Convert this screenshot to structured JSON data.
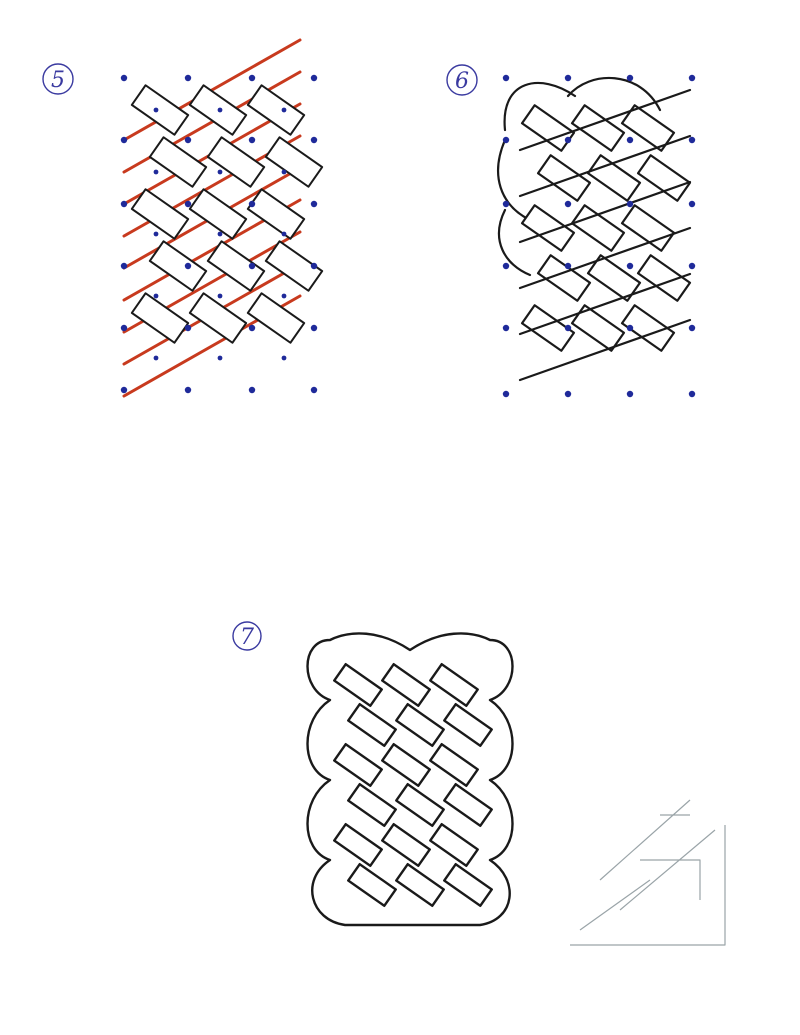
{
  "steps": [
    {
      "number": "5"
    },
    {
      "number": "6"
    },
    {
      "number": "7"
    }
  ],
  "colors": {
    "paper": "#ffffff",
    "ink": "#1a1a1a",
    "guide_dot": "#1f2a9a",
    "guide_line": "#c83a1e",
    "pencil": "#9aa4a8",
    "step_label": "#3a3aa0"
  }
}
